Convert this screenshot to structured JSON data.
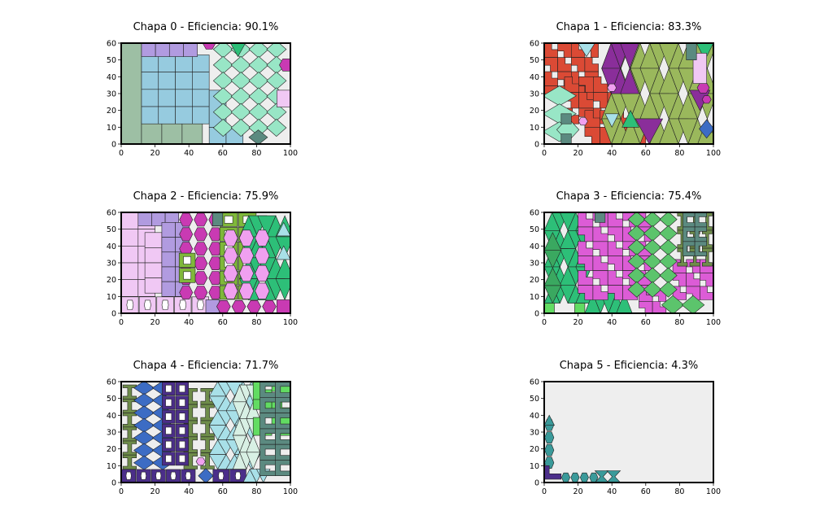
{
  "chart_data": [
    {
      "type": "nesting-plot",
      "title": "Chapa 0 - Eficiencia: 90.1%",
      "xlim": [
        0,
        100
      ],
      "ylim": [
        0,
        60
      ],
      "xticks": [
        0,
        20,
        40,
        60,
        80,
        100
      ],
      "yticks": [
        0,
        10,
        20,
        30,
        40,
        50,
        60
      ],
      "sheet_fill": "#eeeeee",
      "pieces": [
        {
          "shape": "rect",
          "x": 0,
          "y": 0,
          "w": 12,
          "h": 60,
          "color": "#9dbfa4"
        },
        {
          "shape": "grid",
          "x": 12,
          "y": 0,
          "w": 36,
          "h": 13,
          "cols": 3,
          "rows": 1,
          "color": "#9dbfa4"
        },
        {
          "shape": "grid",
          "x": 12,
          "y": 12,
          "w": 40,
          "h": 41,
          "cols": 4,
          "rows": 4,
          "color": "#96cbdf"
        },
        {
          "shape": "grid",
          "x": 12,
          "y": 52,
          "w": 33,
          "h": 8,
          "cols": 4,
          "rows": 1,
          "color": "#b19be0"
        },
        {
          "shape": "hex",
          "x": 48,
          "y": 56,
          "w": 8,
          "h": 7,
          "color": "#c93ab3"
        },
        {
          "shape": "grid",
          "x": 52,
          "y": 0,
          "w": 20,
          "h": 10,
          "cols": 2,
          "rows": 1,
          "color": "#96cbdf"
        },
        {
          "shape": "rect",
          "x": 52,
          "y": 10,
          "w": 10,
          "h": 22,
          "color": "#96cbdf"
        },
        {
          "shape": "diamondgrid",
          "x": 55,
          "y": 5,
          "w": 42,
          "h": 56,
          "cols": 4,
          "rows": 6,
          "color": "#98e6c6"
        },
        {
          "shape": "tri",
          "x": 64,
          "y": 52,
          "w": 10,
          "h": 9,
          "color": "#2dbf78",
          "down": true
        },
        {
          "shape": "hex",
          "x": 93,
          "y": 43,
          "w": 9,
          "h": 8,
          "color": "#c93ab3"
        },
        {
          "shape": "rect",
          "x": 92,
          "y": 22,
          "w": 8,
          "h": 10,
          "color": "#f0c8f4"
        },
        {
          "shape": "diamond",
          "x": 76,
          "y": 0,
          "w": 10,
          "h": 8,
          "color": "#5b8a80"
        }
      ]
    },
    {
      "type": "nesting-plot",
      "title": "Chapa 1 - Eficiencia: 83.3%",
      "xlim": [
        0,
        100
      ],
      "ylim": [
        0,
        60
      ],
      "xticks": [
        0,
        20,
        40,
        60,
        80,
        100
      ],
      "yticks": [
        0,
        10,
        20,
        30,
        40,
        50,
        60
      ],
      "sheet_fill": "#eeeeee",
      "pieces": [
        {
          "shape": "lgrid",
          "x": 0,
          "y": 26,
          "w": 32,
          "h": 34,
          "cols": 4,
          "rows": 4,
          "color": "#db4a35"
        },
        {
          "shape": "lgrid",
          "x": 12,
          "y": 12,
          "w": 34,
          "h": 28,
          "cols": 4,
          "rows": 3,
          "color": "#db4a35"
        },
        {
          "shape": "lgrid",
          "x": 24,
          "y": 0,
          "w": 36,
          "h": 20,
          "cols": 4,
          "rows": 2,
          "color": "#db4a35"
        },
        {
          "shape": "trigrid",
          "x": 34,
          "y": 0,
          "w": 68,
          "h": 60,
          "cols": 6,
          "rows": 4,
          "color": "#9ab85c"
        },
        {
          "shape": "trigrid",
          "x": 34,
          "y": 30,
          "w": 22,
          "h": 30,
          "cols": 2,
          "rows": 2,
          "color": "#8a2e9a"
        },
        {
          "shape": "tri",
          "x": 54,
          "y": 0,
          "w": 16,
          "h": 15,
          "color": "#8a2e9a",
          "down": true
        },
        {
          "shape": "tri",
          "x": 86,
          "y": 20,
          "w": 12,
          "h": 12,
          "color": "#8a2e9a",
          "down": true
        },
        {
          "shape": "diamondgrid",
          "x": 0,
          "y": 2,
          "w": 18,
          "h": 32,
          "cols": 1,
          "rows": 3,
          "color": "#98e6c6"
        },
        {
          "shape": "diamond",
          "x": 8,
          "y": 2,
          "w": 12,
          "h": 13,
          "color": "#98e6c6"
        },
        {
          "shape": "hex",
          "x": 37,
          "y": 31,
          "w": 6,
          "h": 5,
          "color": "#f0a0f0"
        },
        {
          "shape": "hex",
          "x": 20,
          "y": 11,
          "w": 6,
          "h": 5,
          "color": "#f0a0f0"
        },
        {
          "shape": "hex",
          "x": 90,
          "y": 30,
          "w": 8,
          "h": 7,
          "color": "#c93ab3"
        },
        {
          "shape": "hex",
          "x": 93,
          "y": 24,
          "w": 6,
          "h": 5,
          "color": "#c93ab3"
        },
        {
          "shape": "tri",
          "x": 20,
          "y": 52,
          "w": 10,
          "h": 8,
          "color": "#a8e0e8",
          "down": true
        },
        {
          "shape": "tri",
          "x": 36,
          "y": 10,
          "w": 8,
          "h": 8,
          "color": "#a8e0e8",
          "down": true
        },
        {
          "shape": "tri",
          "x": 46,
          "y": 10,
          "w": 10,
          "h": 10,
          "color": "#2dbf78",
          "down": false
        },
        {
          "shape": "tri",
          "x": 90,
          "y": 50,
          "w": 10,
          "h": 10,
          "color": "#2dbf78",
          "down": true
        },
        {
          "shape": "rect",
          "x": 88,
          "y": 36,
          "w": 8,
          "h": 18,
          "color": "#f0c8f4"
        },
        {
          "shape": "rect",
          "x": 84,
          "y": 50,
          "w": 6,
          "h": 10,
          "color": "#5b8a80"
        },
        {
          "shape": "diamond",
          "x": 92,
          "y": 4,
          "w": 8,
          "h": 10,
          "color": "#3c6cc4"
        },
        {
          "shape": "rect",
          "x": 10,
          "y": 12,
          "w": 6,
          "h": 6,
          "color": "#5b8a80"
        },
        {
          "shape": "rect",
          "x": 10,
          "y": 0,
          "w": 6,
          "h": 6,
          "color": "#5b8a80"
        }
      ]
    },
    {
      "type": "nesting-plot",
      "title": "Chapa 2 - Eficiencia: 75.9%",
      "xlim": [
        0,
        100
      ],
      "ylim": [
        0,
        60
      ],
      "xticks": [
        0,
        20,
        40,
        60,
        80,
        100
      ],
      "yticks": [
        0,
        10,
        20,
        30,
        40,
        50,
        60
      ],
      "sheet_fill": "#eeeeee",
      "pieces": [
        {
          "shape": "grid",
          "x": 0,
          "y": 10,
          "w": 20,
          "h": 50,
          "cols": 2,
          "rows": 5,
          "color": "#f0c8f4"
        },
        {
          "shape": "grid",
          "x": 14,
          "y": 12,
          "w": 20,
          "h": 36,
          "cols": 2,
          "rows": 4,
          "color": "#f0c8f4"
        },
        {
          "shape": "octrow",
          "x": 0,
          "y": 0,
          "w": 52,
          "h": 10,
          "cols": 5,
          "color": "#f0c8f4"
        },
        {
          "shape": "grid",
          "x": 10,
          "y": 52,
          "w": 24,
          "h": 8,
          "cols": 3,
          "rows": 1,
          "color": "#b19be0"
        },
        {
          "shape": "grid",
          "x": 24,
          "y": 10,
          "w": 16,
          "h": 44,
          "cols": 2,
          "rows": 5,
          "color": "#b19be0"
        },
        {
          "shape": "rect",
          "x": 50,
          "y": 0,
          "w": 8,
          "h": 8,
          "color": "#b19be0"
        },
        {
          "shape": "hexgrid",
          "x": 34,
          "y": 8,
          "w": 26,
          "h": 52,
          "cols": 3,
          "rows": 6,
          "color": "#c93ab3"
        },
        {
          "shape": "hexgrid",
          "x": 56,
          "y": 0,
          "w": 36,
          "h": 8,
          "cols": 4,
          "rows": 1,
          "color": "#c93ab3"
        },
        {
          "shape": "framegrid",
          "x": 58,
          "y": 8,
          "w": 22,
          "h": 52,
          "cols": 2,
          "rows": 6,
          "color": "#7fb83a"
        },
        {
          "shape": "framegrid",
          "x": 34,
          "y": 18,
          "w": 10,
          "h": 18,
          "cols": 1,
          "rows": 2,
          "color": "#7fb83a"
        },
        {
          "shape": "trigrid",
          "x": 70,
          "y": 8,
          "w": 32,
          "h": 50,
          "cols": 3,
          "rows": 4,
          "color": "#2dbf78"
        },
        {
          "shape": "hexgrid",
          "x": 60,
          "y": 8,
          "w": 28,
          "h": 42,
          "cols": 3,
          "rows": 4,
          "color": "#f0a0f0"
        },
        {
          "shape": "rect",
          "x": 92,
          "y": 0,
          "w": 8,
          "h": 8,
          "color": "#c93ab3"
        },
        {
          "shape": "tri",
          "x": 92,
          "y": 32,
          "w": 8,
          "h": 8,
          "color": "#a8e0e8",
          "down": false
        },
        {
          "shape": "tri",
          "x": 92,
          "y": 46,
          "w": 8,
          "h": 8,
          "color": "#a8e0e8",
          "down": false
        },
        {
          "shape": "rect",
          "x": 54,
          "y": 52,
          "w": 6,
          "h": 8,
          "color": "#5b8a80"
        }
      ]
    },
    {
      "type": "nesting-plot",
      "title": "Chapa 3 - Eficiencia: 75.4%",
      "xlim": [
        0,
        100
      ],
      "ylim": [
        0,
        60
      ],
      "xticks": [
        0,
        20,
        40,
        60,
        80,
        100
      ],
      "yticks": [
        0,
        10,
        20,
        30,
        40,
        50,
        60
      ],
      "sheet_fill": "#eeeeee",
      "pieces": [
        {
          "shape": "trigrid",
          "x": 0,
          "y": 6,
          "w": 28,
          "h": 54,
          "cols": 3,
          "rows": 5,
          "color": "#2dbf78"
        },
        {
          "shape": "trigrid",
          "x": 0,
          "y": 6,
          "w": 10,
          "h": 42,
          "cols": 1,
          "rows": 4,
          "color": "#3aa860"
        },
        {
          "shape": "trigrid",
          "x": 24,
          "y": 0,
          "w": 28,
          "h": 12,
          "cols": 3,
          "rows": 1,
          "color": "#2dbf78"
        },
        {
          "shape": "rect",
          "x": 0,
          "y": 0,
          "w": 6,
          "h": 6,
          "color": "#62dc62"
        },
        {
          "shape": "rect",
          "x": 18,
          "y": 0,
          "w": 6,
          "h": 6,
          "color": "#62dc62"
        },
        {
          "shape": "lgrid",
          "x": 20,
          "y": 8,
          "w": 44,
          "h": 52,
          "cols": 5,
          "rows": 6,
          "color": "#dc5cd6"
        },
        {
          "shape": "lgrid",
          "x": 56,
          "y": 0,
          "w": 16,
          "h": 14,
          "cols": 2,
          "rows": 2,
          "color": "#dc5cd6"
        },
        {
          "shape": "lgrid",
          "x": 76,
          "y": 8,
          "w": 24,
          "h": 24,
          "cols": 3,
          "rows": 3,
          "color": "#dc5cd6"
        },
        {
          "shape": "diamondgrid",
          "x": 50,
          "y": 10,
          "w": 28,
          "h": 50,
          "cols": 3,
          "rows": 6,
          "color": "#5cc46c"
        },
        {
          "shape": "diamondgrid",
          "x": 70,
          "y": 0,
          "w": 24,
          "h": 10,
          "cols": 2,
          "rows": 1,
          "color": "#5cc46c"
        },
        {
          "shape": "igrid",
          "x": 78,
          "y": 28,
          "w": 22,
          "h": 32,
          "cols": 3,
          "rows": 3,
          "color": "#6e8c4a"
        },
        {
          "shape": "cgrid",
          "x": 82,
          "y": 34,
          "w": 14,
          "h": 26,
          "cols": 2,
          "rows": 3,
          "color": "#5b8a80"
        },
        {
          "shape": "rect",
          "x": 30,
          "y": 54,
          "w": 6,
          "h": 6,
          "color": "#5b8a80"
        }
      ]
    },
    {
      "type": "nesting-plot",
      "title": "Chapa 4 - Eficiencia: 71.7%",
      "xlim": [
        0,
        100
      ],
      "ylim": [
        0,
        60
      ],
      "xticks": [
        0,
        20,
        40,
        60,
        80,
        100
      ],
      "yticks": [
        0,
        10,
        20,
        30,
        40,
        50,
        60
      ],
      "sheet_fill": "#eeeeee",
      "pieces": [
        {
          "shape": "igrid",
          "x": 0,
          "y": 8,
          "w": 10,
          "h": 50,
          "cols": 1,
          "rows": 6,
          "color": "#6e8c4a"
        },
        {
          "shape": "igrid",
          "x": 36,
          "y": 8,
          "w": 20,
          "h": 48,
          "cols": 2,
          "rows": 5,
          "color": "#6e8c4a"
        },
        {
          "shape": "diamondgrid",
          "x": 8,
          "y": 8,
          "w": 22,
          "h": 52,
          "cols": 2,
          "rows": 7,
          "color": "#3c6cc4"
        },
        {
          "shape": "diamond",
          "x": 46,
          "y": 0,
          "w": 8,
          "h": 8,
          "color": "#3c6cc4"
        },
        {
          "shape": "framegrid",
          "x": 24,
          "y": 10,
          "w": 16,
          "h": 50,
          "cols": 2,
          "rows": 6,
          "color": "#4b2e8a"
        },
        {
          "shape": "octrow",
          "x": 0,
          "y": 0,
          "w": 44,
          "h": 8,
          "cols": 5,
          "color": "#4b2e8a"
        },
        {
          "shape": "octrow",
          "x": 54,
          "y": 0,
          "w": 20,
          "h": 8,
          "cols": 2,
          "color": "#4b2e8a"
        },
        {
          "shape": "trigrid",
          "x": 52,
          "y": 8,
          "w": 30,
          "h": 52,
          "cols": 3,
          "rows": 6,
          "color": "#a8e0e8"
        },
        {
          "shape": "trigrid",
          "x": 66,
          "y": 8,
          "w": 16,
          "h": 50,
          "cols": 2,
          "rows": 5,
          "color": "#d8f0e4"
        },
        {
          "shape": "trigrid",
          "x": 72,
          "y": 0,
          "w": 16,
          "h": 8,
          "cols": 2,
          "rows": 1,
          "color": "#a8e0e8"
        },
        {
          "shape": "lgrid",
          "x": 78,
          "y": 28,
          "w": 22,
          "h": 32,
          "cols": 2,
          "rows": 3,
          "color": "#62dc62"
        },
        {
          "shape": "cgrid",
          "x": 82,
          "y": 4,
          "w": 18,
          "h": 56,
          "cols": 2,
          "rows": 6,
          "color": "#5b8a80"
        },
        {
          "shape": "hex",
          "x": 44,
          "y": 10,
          "w": 6,
          "h": 5,
          "color": "#f0a0f0"
        }
      ]
    },
    {
      "type": "nesting-plot",
      "title": "Chapa 5 - Eficiencia: 4.3%",
      "xlim": [
        0,
        100
      ],
      "ylim": [
        0,
        60
      ],
      "xticks": [
        0,
        20,
        40,
        60,
        80,
        100
      ],
      "yticks": [
        0,
        10,
        20,
        30,
        40,
        50,
        60
      ],
      "sheet_fill": "#eeeeee",
      "pieces": [
        {
          "shape": "hexcol",
          "x": 0,
          "y": 8,
          "w": 6,
          "h": 30,
          "rows": 4,
          "color": "#3a9a9a"
        },
        {
          "shape": "tri",
          "x": 0,
          "y": 34,
          "w": 6,
          "h": 6,
          "color": "#3a9a9a",
          "down": false
        },
        {
          "shape": "lshape",
          "x": 0,
          "y": 2,
          "w": 10,
          "h": 8,
          "color": "#4b2e8a"
        },
        {
          "shape": "hexrow",
          "x": 10,
          "y": 0,
          "w": 22,
          "h": 6,
          "cols": 4,
          "color": "#3a9a9a"
        },
        {
          "shape": "bowtie",
          "x": 30,
          "y": 0,
          "w": 8,
          "h": 7,
          "color": "#3a9a9a"
        },
        {
          "shape": "bowtie",
          "x": 37,
          "y": 0,
          "w": 8,
          "h": 7,
          "color": "#3a9a9a"
        }
      ]
    }
  ]
}
